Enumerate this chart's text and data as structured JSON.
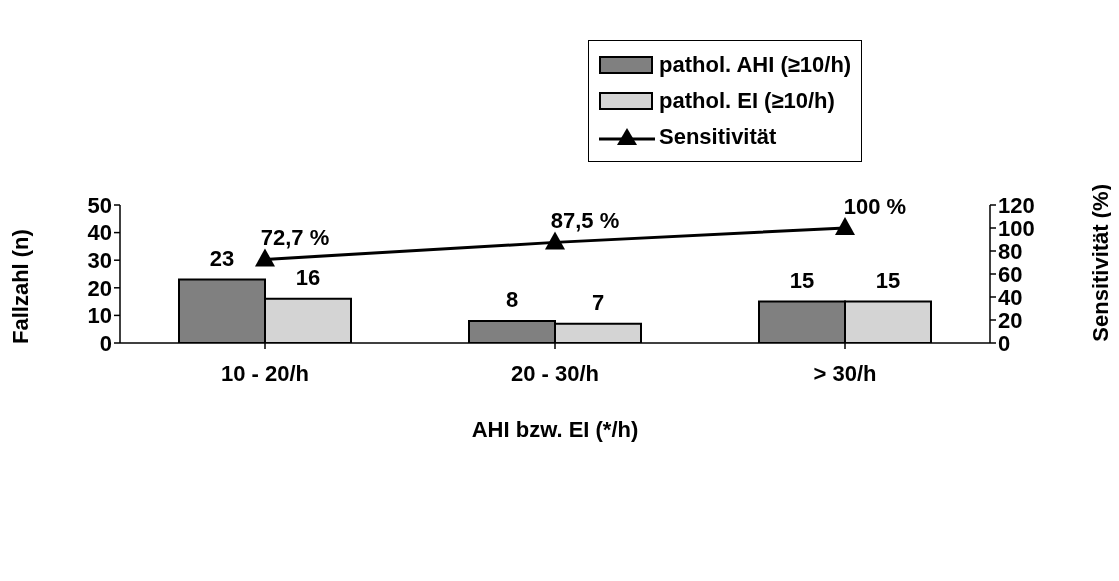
{
  "chart_data": {
    "type": "bar",
    "xlabel": "AHI bzw. EI (*/h)",
    "ylabel": "Fallzahl (n)",
    "y2label": "Sensitivität (%)",
    "categories": [
      "10 - 20/h",
      "20 - 30/h",
      "> 30/h"
    ],
    "series": [
      {
        "name": "pathol. AHI (≥10/h)",
        "color": "#808080",
        "values": [
          23,
          8,
          15
        ],
        "value_labels": [
          "23",
          "8",
          "15"
        ]
      },
      {
        "name": "pathol. EI (≥10/h)",
        "color": "#d4d4d4",
        "values": [
          16,
          7,
          15
        ],
        "value_labels": [
          "16",
          "7",
          "15"
        ]
      },
      {
        "name": "Sensitivität",
        "type": "line",
        "axis": "y2",
        "color": "#000000",
        "marker": "triangle",
        "values": [
          72.7,
          87.5,
          100
        ],
        "value_labels": [
          "72,7 %",
          "87,5 %",
          "100 %"
        ]
      }
    ],
    "ylim": [
      0,
      50
    ],
    "yticks": [
      0,
      10,
      20,
      30,
      40,
      50
    ],
    "y2lim": [
      0,
      120
    ],
    "y2ticks": [
      0,
      20,
      40,
      60,
      80,
      100,
      120
    ],
    "grid": false,
    "legend": "top right"
  }
}
